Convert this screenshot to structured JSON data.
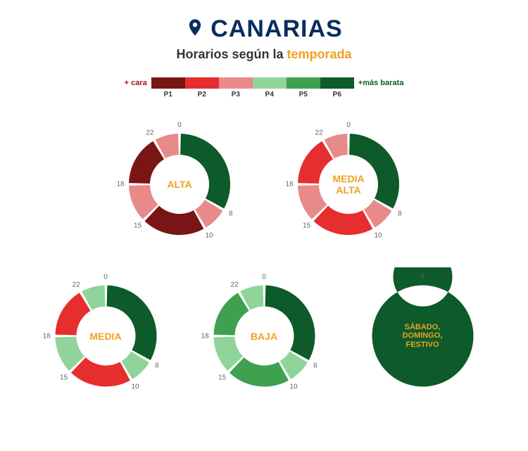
{
  "colors": {
    "title": "#0a2d5e",
    "subtitle_base": "#333333",
    "subtitle_highlight": "#f0a020",
    "ring_label": "#f0a020",
    "legend_cara": "#a01818",
    "legend_barata": "#0d5a2a",
    "tick_text": "#666666",
    "white": "#ffffff"
  },
  "periods": {
    "P1": "#7a1515",
    "P2": "#e62e2e",
    "P3": "#e88a8a",
    "P4": "#8fd49a",
    "P5": "#3fa050",
    "P6": "#0d5a2a"
  },
  "header": {
    "icon": "location-pin",
    "title": "CANARIAS",
    "subtitle_prefix": "Horarios según la ",
    "subtitle_highlight": "temporada"
  },
  "legend": {
    "left_label": "+ cara",
    "right_label": "+más barata",
    "items": [
      "P1",
      "P2",
      "P3",
      "P4",
      "P5",
      "P6"
    ]
  },
  "donut_geom": {
    "outer_r": 72,
    "inner_r": 42,
    "gap_deg": 3,
    "tick_r": 84,
    "center_fontsize": 14,
    "center_fontsize_small": 11
  },
  "rings": [
    {
      "id": "alta",
      "row": 0,
      "label": "ALTA",
      "ticks": [
        0,
        8,
        10,
        15,
        18,
        22
      ],
      "segments": [
        {
          "from": 0,
          "to": 8,
          "p": "P6"
        },
        {
          "from": 8,
          "to": 10,
          "p": "P3"
        },
        {
          "from": 10,
          "to": 15,
          "p": "P1"
        },
        {
          "from": 15,
          "to": 18,
          "p": "P3"
        },
        {
          "from": 18,
          "to": 22,
          "p": "P1"
        },
        {
          "from": 22,
          "to": 24,
          "p": "P3"
        }
      ]
    },
    {
      "id": "media-alta",
      "row": 0,
      "label": "MEDIA\nALTA",
      "ticks": [
        0,
        8,
        10,
        15,
        18,
        22
      ],
      "segments": [
        {
          "from": 0,
          "to": 8,
          "p": "P6"
        },
        {
          "from": 8,
          "to": 10,
          "p": "P3"
        },
        {
          "from": 10,
          "to": 15,
          "p": "P2"
        },
        {
          "from": 15,
          "to": 18,
          "p": "P3"
        },
        {
          "from": 18,
          "to": 22,
          "p": "P2"
        },
        {
          "from": 22,
          "to": 24,
          "p": "P3"
        }
      ]
    },
    {
      "id": "media",
      "row": 1,
      "label": "MEDIA",
      "ticks": [
        0,
        8,
        10,
        15,
        18,
        22
      ],
      "segments": [
        {
          "from": 0,
          "to": 8,
          "p": "P6"
        },
        {
          "from": 8,
          "to": 10,
          "p": "P4"
        },
        {
          "from": 10,
          "to": 15,
          "p": "P2"
        },
        {
          "from": 15,
          "to": 18,
          "p": "P4"
        },
        {
          "from": 18,
          "to": 22,
          "p": "P2"
        },
        {
          "from": 22,
          "to": 24,
          "p": "P4"
        }
      ]
    },
    {
      "id": "baja",
      "row": 1,
      "label": "BAJA",
      "ticks": [
        0,
        8,
        10,
        15,
        18,
        22
      ],
      "segments": [
        {
          "from": 0,
          "to": 8,
          "p": "P6"
        },
        {
          "from": 8,
          "to": 10,
          "p": "P4"
        },
        {
          "from": 10,
          "to": 15,
          "p": "P5"
        },
        {
          "from": 15,
          "to": 18,
          "p": "P4"
        },
        {
          "from": 18,
          "to": 22,
          "p": "P5"
        },
        {
          "from": 22,
          "to": 24,
          "p": "P4"
        }
      ]
    },
    {
      "id": "festivo",
      "row": 1,
      "label": "SÁBADO,\nDOMINGO,\nFESTIVO",
      "ticks": [
        0
      ],
      "segments": [
        {
          "from": 0,
          "to": 24,
          "p": "P6"
        }
      ],
      "no_gap": true,
      "small_label": true
    }
  ]
}
